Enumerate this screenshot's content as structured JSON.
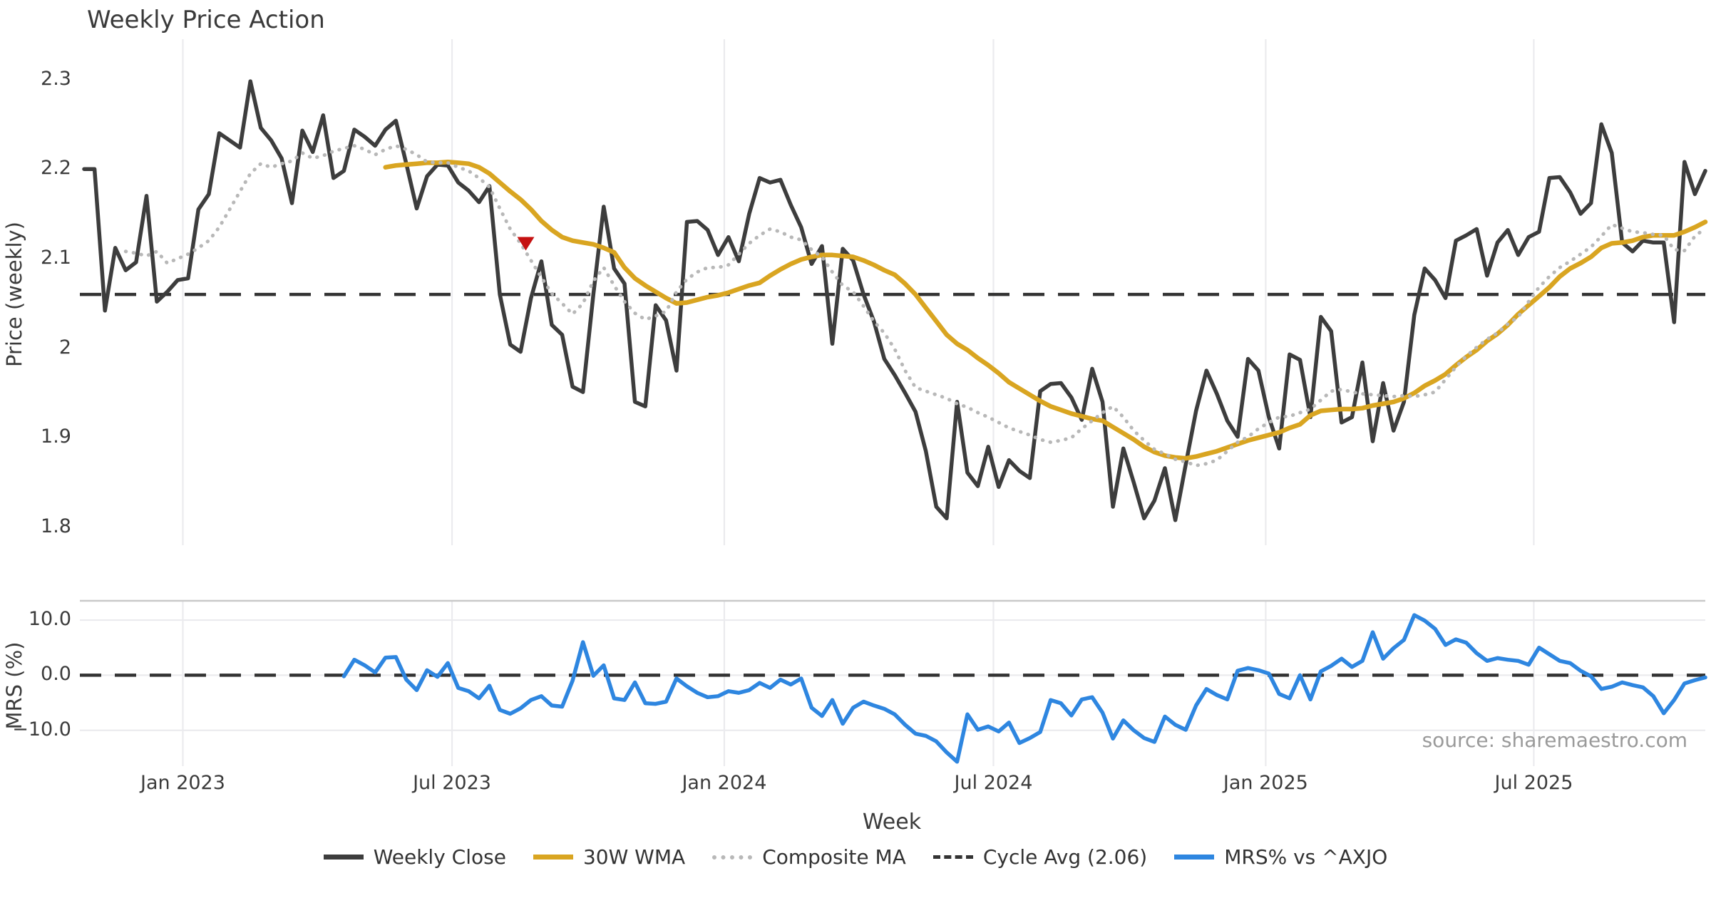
{
  "title": "Weekly Price Action",
  "xlabel": "Week",
  "source": "source: sharemaestro.com",
  "colors": {
    "weekly_close": "#3d3d3d",
    "wma": "#d9a521",
    "composite": "#b8b8b8",
    "cycle_avg": "#333333",
    "mrs": "#2e86e0",
    "signal_marker": "#c51111",
    "gridline": "#ebebee",
    "axis_text": "#3b3b3b",
    "source_text": "#9a9a9a"
  },
  "legend": [
    {
      "label": "Weekly Close",
      "color": "#3d3d3d",
      "style": "solid"
    },
    {
      "label": "30W WMA",
      "color": "#d9a521",
      "style": "solid"
    },
    {
      "label": "Composite MA",
      "color": "#b8b8b8",
      "style": "dotted"
    },
    {
      "label": "Cycle Avg (2.06)",
      "color": "#333333",
      "style": "dashed"
    },
    {
      "label": "MRS% vs ^AXJO",
      "color": "#2e86e0",
      "style": "solid"
    }
  ],
  "chart_data": {
    "type": "line",
    "title": "Weekly Price Action",
    "xlabel": "Week",
    "x_cadence": "weekly",
    "n_weeks": 157,
    "x_ticks": [
      {
        "label": "Jan 2023",
        "index": 9.5
      },
      {
        "label": "Jul 2023",
        "index": 35.4
      },
      {
        "label": "Jan 2024",
        "index": 61.6
      },
      {
        "label": "Jul 2024",
        "index": 87.5
      },
      {
        "label": "Jan 2025",
        "index": 113.7
      },
      {
        "label": "Jul 2025",
        "index": 139.5
      }
    ],
    "panels": [
      {
        "ylabel": "Price (weekly)",
        "ytick_labels": [
          "2.3",
          "2.2",
          "2.1",
          "2",
          "1.9",
          "1.8"
        ],
        "ytick_values": [
          2.3,
          2.2,
          2.1,
          2.0,
          1.9,
          1.8
        ],
        "ylim": [
          1.78,
          2.345
        ],
        "grid": "vertical-only",
        "reference_line": {
          "name": "Cycle Avg (2.06)",
          "value": 2.06,
          "style": "dashed",
          "color": "#333333"
        },
        "marker": {
          "shape": "triangle-down",
          "color": "#c51111",
          "week_index": 42.5,
          "price": 2.117
        },
        "series": [
          {
            "name": "Weekly Close",
            "color": "#3d3d3d",
            "style": "solid",
            "width": 5.5,
            "start_index": 0,
            "values": [
              2.2,
              2.2,
              2.042,
              2.112,
              2.087,
              2.096,
              2.17,
              2.052,
              2.063,
              2.076,
              2.078,
              2.155,
              2.172,
              2.24,
              2.232,
              2.224,
              2.298,
              2.246,
              2.232,
              2.212,
              2.162,
              2.243,
              2.219,
              2.26,
              2.19,
              2.198,
              2.244,
              2.236,
              2.226,
              2.244,
              2.254,
              2.206,
              2.156,
              2.192,
              2.205,
              2.204,
              2.185,
              2.176,
              2.163,
              2.181,
              2.06,
              2.004,
              1.996,
              2.056,
              2.097,
              2.026,
              2.015,
              1.957,
              1.951,
              2.06,
              2.158,
              2.089,
              2.072,
              1.94,
              1.935,
              2.048,
              2.031,
              1.975,
              2.141,
              2.142,
              2.132,
              2.104,
              2.124,
              2.097,
              2.15,
              2.19,
              2.185,
              2.188,
              2.16,
              2.135,
              2.094,
              2.114,
              2.005,
              2.111,
              2.098,
              2.06,
              2.03,
              1.988,
              1.97,
              1.95,
              1.929,
              1.885,
              1.823,
              1.81,
              1.94,
              1.861,
              1.846,
              1.89,
              1.845,
              1.875,
              1.863,
              1.855,
              1.952,
              1.96,
              1.961,
              1.945,
              1.92,
              1.977,
              1.94,
              1.823,
              1.888,
              1.85,
              1.81,
              1.83,
              1.866,
              1.808,
              1.87,
              1.93,
              1.975,
              1.949,
              1.919,
              1.901,
              1.988,
              1.975,
              1.923,
              1.888,
              1.993,
              1.987,
              1.923,
              2.035,
              2.019,
              1.917,
              1.923,
              1.984,
              1.896,
              1.961,
              1.908,
              1.94,
              2.037,
              2.089,
              2.076,
              2.056,
              2.12,
              2.126,
              2.133,
              2.081,
              2.118,
              2.132,
              2.104,
              2.124,
              2.13,
              2.19,
              2.191,
              2.174,
              2.15,
              2.162,
              2.25,
              2.218,
              2.118,
              2.108,
              2.12,
              2.118,
              2.118,
              2.029,
              2.208,
              2.172,
              2.198
            ]
          },
          {
            "name": "30W WMA",
            "color": "#d9a521",
            "style": "solid",
            "width": 6.5,
            "start_index": 29,
            "values": [
              2.202,
              2.204,
              2.205,
              2.206,
              2.207,
              2.207,
              2.208,
              2.207,
              2.206,
              2.202,
              2.195,
              2.185,
              2.175,
              2.166,
              2.155,
              2.142,
              2.132,
              2.124,
              2.12,
              2.118,
              2.116,
              2.112,
              2.107,
              2.09,
              2.078,
              2.07,
              2.063,
              2.056,
              2.05,
              2.051,
              2.054,
              2.057,
              2.059,
              2.062,
              2.066,
              2.07,
              2.073,
              2.081,
              2.088,
              2.094,
              2.099,
              2.102,
              2.104,
              2.104,
              2.103,
              2.102,
              2.098,
              2.093,
              2.087,
              2.082,
              2.072,
              2.06,
              2.045,
              2.03,
              2.015,
              2.005,
              1.998,
              1.989,
              1.981,
              1.972,
              1.962,
              1.955,
              1.948,
              1.941,
              1.935,
              1.931,
              1.927,
              1.924,
              1.921,
              1.919,
              1.912,
              1.905,
              1.898,
              1.89,
              1.884,
              1.88,
              1.878,
              1.877,
              1.879,
              1.882,
              1.885,
              1.889,
              1.893,
              1.897,
              1.9,
              1.903,
              1.906,
              1.911,
              1.915,
              1.925,
              1.93,
              1.931,
              1.932,
              1.932,
              1.933,
              1.936,
              1.938,
              1.94,
              1.944,
              1.95,
              1.958,
              1.964,
              1.971,
              1.981,
              1.99,
              1.998,
              2.008,
              2.016,
              2.026,
              2.038,
              2.048,
              2.058,
              2.068,
              2.08,
              2.089,
              2.095,
              2.102,
              2.112,
              2.117,
              2.118,
              2.12,
              2.124,
              2.126,
              2.126,
              2.126,
              2.13,
              2.135,
              2.141
            ]
          },
          {
            "name": "Composite MA",
            "color": "#b8b8b8",
            "style": "dotted",
            "width": 5,
            "start_index": 4,
            "values": [
              2.108,
              2.106,
              2.103,
              2.108,
              2.095,
              2.1,
              2.105,
              2.112,
              2.12,
              2.135,
              2.155,
              2.175,
              2.195,
              2.206,
              2.202,
              2.206,
              2.209,
              2.218,
              2.212,
              2.215,
              2.22,
              2.223,
              2.226,
              2.222,
              2.216,
              2.222,
              2.226,
              2.222,
              2.216,
              2.208,
              2.207,
              2.207,
              2.202,
              2.198,
              2.19,
              2.18,
              2.156,
              2.133,
              2.117,
              2.098,
              2.079,
              2.061,
              2.05,
              2.038,
              2.05,
              2.075,
              2.09,
              2.07,
              2.052,
              2.039,
              2.032,
              2.036,
              2.041,
              2.063,
              2.077,
              2.085,
              2.09,
              2.09,
              2.093,
              2.105,
              2.117,
              2.126,
              2.133,
              2.13,
              2.124,
              2.121,
              2.11,
              2.102,
              2.085,
              2.07,
              2.063,
              2.047,
              2.03,
              2.017,
              1.999,
              1.975,
              1.956,
              1.952,
              1.948,
              1.944,
              1.938,
              1.934,
              1.928,
              1.923,
              1.917,
              1.911,
              1.907,
              1.903,
              1.898,
              1.895,
              1.897,
              1.9,
              1.91,
              1.919,
              1.928,
              1.935,
              1.923,
              1.908,
              1.897,
              1.887,
              1.882,
              1.876,
              1.873,
              1.869,
              1.871,
              1.875,
              1.885,
              1.895,
              1.901,
              1.91,
              1.917,
              1.923,
              1.924,
              1.928,
              1.932,
              1.942,
              1.952,
              1.954,
              1.951,
              1.949,
              1.948,
              1.947,
              1.946,
              1.947,
              1.946,
              1.948,
              1.951,
              1.965,
              1.979,
              1.991,
              2.001,
              2.01,
              2.017,
              2.027,
              2.035,
              2.052,
              2.068,
              2.08,
              2.09,
              2.097,
              2.105,
              2.113,
              2.125,
              2.138,
              2.134,
              2.13,
              2.129,
              2.127,
              2.126,
              2.11,
              2.109,
              2.125,
              2.134
            ]
          }
        ]
      },
      {
        "ylabel": "MRS (%)",
        "ytick_labels": [
          "10.0",
          "0.0",
          "−10.0"
        ],
        "ytick_values": [
          10,
          0,
          -10
        ],
        "ylim": [
          -16.5,
          13.5
        ],
        "grid": "horizontal-and-vertical",
        "top_spine": true,
        "reference_line": {
          "name": "zero line",
          "value": 0,
          "style": "dashed",
          "color": "#333333"
        },
        "series": [
          {
            "name": "MRS% vs ^AXJO",
            "color": "#2e86e0",
            "style": "solid",
            "width": 5.5,
            "start_index": 25,
            "values": [
              -0.2,
              2.8,
              1.8,
              0.5,
              3.2,
              3.3,
              -0.8,
              -2.7,
              0.9,
              -0.3,
              2.2,
              -2.3,
              -2.9,
              -4.2,
              -1.9,
              -6.3,
              -7.0,
              -6.0,
              -4.5,
              -3.8,
              -5.5,
              -5.7,
              -1.0,
              6.0,
              -0.1,
              1.8,
              -4.2,
              -4.5,
              -1.3,
              -5.1,
              -5.2,
              -4.8,
              -0.6,
              -2.0,
              -3.2,
              -4.0,
              -3.8,
              -2.9,
              -3.2,
              -2.7,
              -1.4,
              -2.3,
              -0.8,
              -1.7,
              -0.6,
              -5.9,
              -7.4,
              -4.5,
              -8.8,
              -5.9,
              -4.8,
              -5.5,
              -6.1,
              -7.1,
              -9.0,
              -10.6,
              -11.0,
              -12.0,
              -14.0,
              -15.7,
              -7.1,
              -9.9,
              -9.3,
              -10.2,
              -8.6,
              -12.3,
              -11.4,
              -10.3,
              -4.5,
              -5.1,
              -7.3,
              -4.4,
              -4.0,
              -6.8,
              -11.5,
              -8.2,
              -10.0,
              -11.4,
              -12.1,
              -7.5,
              -9.0,
              -9.9,
              -5.5,
              -2.5,
              -3.6,
              -4.4,
              0.8,
              1.3,
              0.9,
              0.3,
              -3.4,
              -4.2,
              0.0,
              -4.4,
              0.7,
              1.7,
              3.0,
              1.5,
              2.6,
              7.8,
              3.0,
              4.9,
              6.4,
              10.9,
              9.9,
              8.4,
              5.5,
              6.5,
              5.9,
              4.0,
              2.6,
              3.1,
              2.8,
              2.6,
              1.9,
              5.0,
              3.8,
              2.6,
              2.2,
              0.8,
              -0.2,
              -2.5,
              -2.1,
              -1.3,
              -1.8,
              -2.2,
              -3.8,
              -6.9,
              -4.5,
              -1.5,
              -0.9,
              -0.4
            ]
          }
        ]
      }
    ]
  }
}
